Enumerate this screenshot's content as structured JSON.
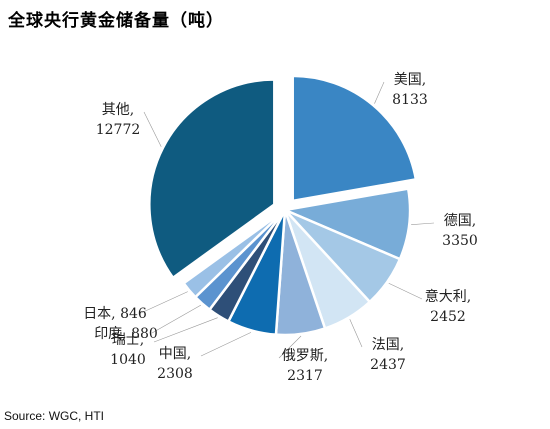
{
  "chart_data": {
    "type": "pie",
    "title": "全球央行黄金储备量（吨）",
    "source": "Source: WGC, HTI",
    "slices": [
      {
        "name": "美国",
        "value": 8133,
        "value_label": "8133",
        "color": "#3a86c4",
        "exploded": true
      },
      {
        "name": "德国",
        "value": 3350,
        "value_label": "3350",
        "color": "#78acd8"
      },
      {
        "name": "意大利",
        "value": 2452,
        "value_label": "2452",
        "color": "#a4c8e6"
      },
      {
        "name": "法国",
        "value": 2437,
        "value_label": "2437",
        "color": "#d2e5f4"
      },
      {
        "name": "俄罗斯",
        "value": 2317,
        "value_label": "2317",
        "color": "#8fb2da"
      },
      {
        "name": "中国",
        "value": 2308,
        "value_label": "2308",
        "color": "#0e6cb0"
      },
      {
        "name": "瑞士",
        "value": 1040,
        "value_label": "1040",
        "color": "#2e4f78"
      },
      {
        "name": "印度",
        "value": 880,
        "value_label": "880",
        "color": "#5b93cf"
      },
      {
        "name": "日本",
        "value": 846,
        "value_label": "846",
        "color": "#9ac0e6"
      },
      {
        "name": "其他",
        "value": 12772,
        "value_label": "12772",
        "color": "#0f5b80",
        "exploded": true
      }
    ]
  }
}
